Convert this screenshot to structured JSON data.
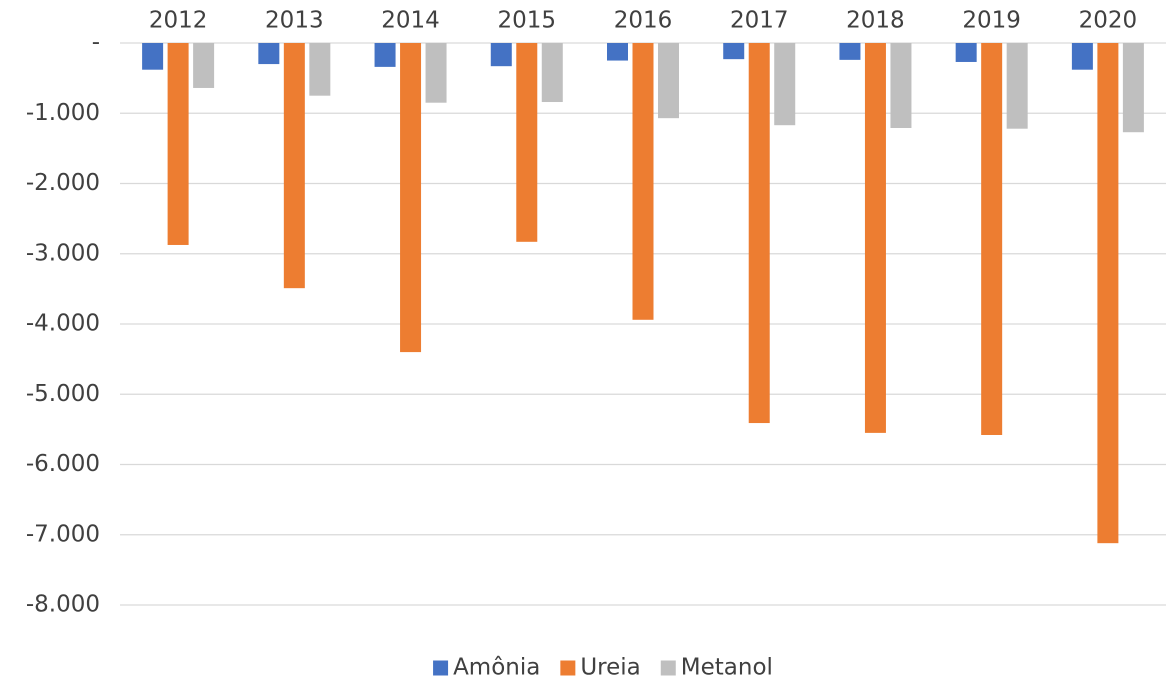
{
  "chart_data": {
    "type": "bar",
    "categories": [
      "2012",
      "2013",
      "2014",
      "2015",
      "2016",
      "2017",
      "2018",
      "2019",
      "2020"
    ],
    "series": [
      {
        "name": "Amônia",
        "color": "#4472c4",
        "values": [
          -380,
          -300,
          -340,
          -330,
          -250,
          -230,
          -240,
          -270,
          -380
        ]
      },
      {
        "name": "Ureia",
        "color": "#ed7d31",
        "values": [
          -2875,
          -3490,
          -4400,
          -2830,
          -3940,
          -5410,
          -5550,
          -5580,
          -7120
        ]
      },
      {
        "name": "Metanol",
        "color": "#bfbfbf",
        "values": [
          -640,
          -750,
          -850,
          -840,
          -1070,
          -1170,
          -1210,
          -1220,
          -1270
        ]
      }
    ],
    "ylim": [
      -8000,
      0
    ],
    "yticks": [
      {
        "value": 0,
        "label": "-"
      },
      {
        "value": -1000,
        "label": "-1.000"
      },
      {
        "value": -2000,
        "label": "-2.000"
      },
      {
        "value": -3000,
        "label": "-3.000"
      },
      {
        "value": -4000,
        "label": "-4.000"
      },
      {
        "value": -5000,
        "label": "-5.000"
      },
      {
        "value": -6000,
        "label": "-6.000"
      },
      {
        "value": -7000,
        "label": "-7.000"
      },
      {
        "value": -8000,
        "label": "-8.000"
      }
    ],
    "grid": true,
    "legend": "bottom"
  }
}
